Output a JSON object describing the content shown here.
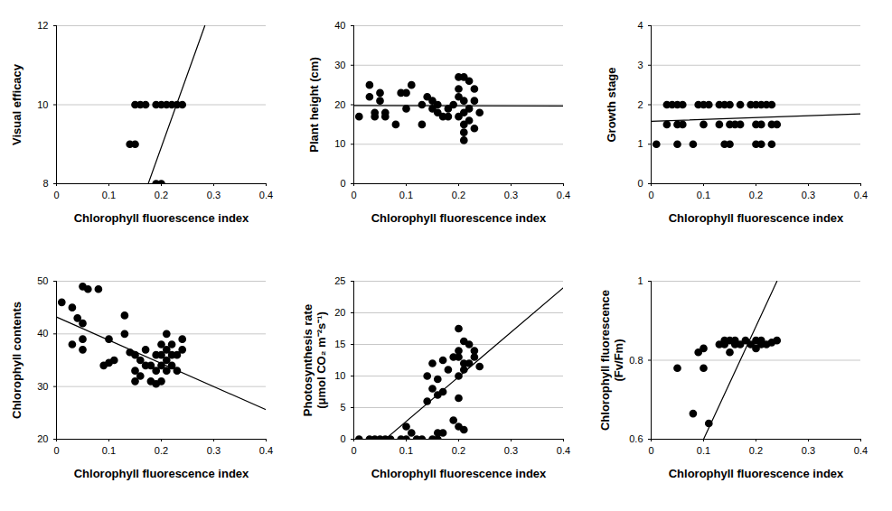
{
  "chart_data": [
    {
      "type": "scatter",
      "xlabel": "Chlorophyll fluorescence index",
      "ylabel": "Visual efficacy",
      "x": [
        0.14,
        0.15,
        0.15,
        0.16,
        0.17,
        0.19,
        0.2,
        0.21,
        0.22,
        0.23,
        0.24,
        0.19,
        0.2
      ],
      "y": [
        9,
        9,
        10,
        10,
        10,
        10,
        10,
        10,
        10,
        10,
        10,
        8,
        8
      ],
      "trend_line": {
        "x": [
          0.175,
          0.283
        ],
        "y": [
          8,
          12
        ]
      },
      "xlim": [
        0,
        0.4
      ],
      "xticks": [
        0,
        0.1,
        0.2,
        0.3,
        0.4
      ],
      "ylim": [
        8,
        12
      ],
      "yticks": [
        8,
        10,
        12
      ],
      "grid": true,
      "color": "#000000",
      "marker": "circle",
      "line_style": "solid"
    },
    {
      "type": "scatter",
      "xlabel": "Chlorophyll fluorescence index",
      "ylabel": "Plant height (cm)",
      "x": [
        0.01,
        0.03,
        0.03,
        0.04,
        0.04,
        0.05,
        0.05,
        0.06,
        0.06,
        0.08,
        0.09,
        0.1,
        0.1,
        0.11,
        0.13,
        0.13,
        0.14,
        0.15,
        0.15,
        0.16,
        0.16,
        0.17,
        0.18,
        0.18,
        0.19,
        0.2,
        0.2,
        0.21,
        0.2,
        0.21,
        0.21,
        0.2,
        0.21,
        0.22,
        0.21,
        0.22,
        0.23,
        0.23,
        0.23,
        0.24,
        0.22,
        0.21
      ],
      "y": [
        17,
        22,
        25,
        18,
        17,
        21,
        23,
        18,
        17,
        15,
        23,
        23,
        19,
        25,
        20,
        15,
        22,
        19,
        21,
        20,
        18,
        17,
        17,
        19,
        20,
        27,
        24,
        27,
        22,
        18,
        21,
        17,
        13,
        26,
        11,
        19,
        21,
        24,
        14,
        18,
        16,
        15
      ],
      "trend_line": {
        "x": [
          0,
          0.4
        ],
        "y": [
          19.8,
          19.7
        ]
      },
      "xlim": [
        0,
        0.4
      ],
      "xticks": [
        0,
        0.1,
        0.2,
        0.3,
        0.4
      ],
      "ylim": [
        0,
        40
      ],
      "yticks": [
        0,
        10,
        20,
        30,
        40
      ],
      "grid": true,
      "color": "#000000",
      "marker": "circle",
      "line_style": "solid"
    },
    {
      "type": "scatter",
      "xlabel": "Chlorophyll fluorescence index",
      "ylabel": "Growth stage",
      "x": [
        0.01,
        0.03,
        0.03,
        0.04,
        0.05,
        0.05,
        0.05,
        0.06,
        0.06,
        0.08,
        0.09,
        0.1,
        0.1,
        0.11,
        0.13,
        0.13,
        0.14,
        0.14,
        0.15,
        0.15,
        0.15,
        0.16,
        0.17,
        0.17,
        0.19,
        0.2,
        0.2,
        0.2,
        0.21,
        0.21,
        0.21,
        0.22,
        0.23,
        0.23,
        0.23,
        0.24
      ],
      "y": [
        1,
        1.5,
        2,
        2,
        1,
        1.5,
        2,
        2,
        1.5,
        1,
        2,
        2,
        1.5,
        2,
        2,
        1.5,
        2,
        1,
        2,
        1,
        1.5,
        1.5,
        2,
        1.5,
        2,
        2,
        1,
        1.5,
        2,
        1,
        1.5,
        2,
        2,
        1,
        1.5,
        1.5
      ],
      "trend_line": {
        "x": [
          0,
          0.4
        ],
        "y": [
          1.58,
          1.77
        ]
      },
      "xlim": [
        0,
        0.4
      ],
      "xticks": [
        0,
        0.1,
        0.2,
        0.3,
        0.4
      ],
      "ylim": [
        0,
        4
      ],
      "yticks": [
        0,
        1,
        2,
        3,
        4
      ],
      "grid": true,
      "color": "#000000",
      "marker": "circle",
      "line_style": "solid"
    },
    {
      "type": "scatter",
      "xlabel": "Chlorophyll fluorescence index",
      "ylabel": "Chlorophyll contents",
      "x": [
        0.01,
        0.03,
        0.03,
        0.04,
        0.05,
        0.05,
        0.05,
        0.05,
        0.06,
        0.08,
        0.09,
        0.1,
        0.1,
        0.11,
        0.13,
        0.13,
        0.14,
        0.15,
        0.15,
        0.15,
        0.16,
        0.16,
        0.17,
        0.17,
        0.18,
        0.18,
        0.19,
        0.19,
        0.19,
        0.2,
        0.2,
        0.2,
        0.2,
        0.21,
        0.21,
        0.21,
        0.21,
        0.22,
        0.22,
        0.22,
        0.23,
        0.23,
        0.24,
        0.24
      ],
      "y": [
        46,
        45,
        38,
        43,
        49,
        42,
        39,
        37,
        48.5,
        48.5,
        34,
        34.5,
        39,
        35,
        43.5,
        40,
        36.5,
        36,
        33,
        31,
        35,
        32,
        37,
        34,
        34,
        31,
        36,
        33,
        30.5,
        36,
        38,
        34,
        31,
        40,
        37,
        35,
        33,
        38,
        36,
        34,
        36,
        33,
        39,
        37
      ],
      "trend_line": {
        "x": [
          0,
          0.4
        ],
        "y": [
          43.2,
          25.6
        ]
      },
      "xlim": [
        0,
        0.4
      ],
      "xticks": [
        0,
        0.1,
        0.2,
        0.3,
        0.4
      ],
      "ylim": [
        20,
        50
      ],
      "yticks": [
        20,
        30,
        40,
        50
      ],
      "grid": true,
      "color": "#000000",
      "marker": "circle",
      "line_style": "solid"
    },
    {
      "type": "scatter",
      "xlabel": "Chlorophyll fluorescence index",
      "ylabel": "Photosynthesis rate\n(μmol CO₂ m⁻²s⁻¹)",
      "x": [
        0.01,
        0.03,
        0.04,
        0.05,
        0.06,
        0.07,
        0.09,
        0.1,
        0.12,
        0.13,
        0.15,
        0.16,
        0.1,
        0.11,
        0.14,
        0.14,
        0.15,
        0.15,
        0.16,
        0.16,
        0.17,
        0.17,
        0.16,
        0.17,
        0.18,
        0.19,
        0.19,
        0.2,
        0.2,
        0.2,
        0.2,
        0.2,
        0.21,
        0.21,
        0.21,
        0.21,
        0.22,
        0.22,
        0.23,
        0.23,
        0.24,
        0.2
      ],
      "y": [
        0,
        0,
        0,
        0,
        0,
        0,
        0,
        0,
        0,
        0,
        0,
        0,
        2,
        1,
        6,
        10,
        8,
        12,
        9.5,
        7,
        12.5,
        7.5,
        1,
        1,
        11,
        13,
        3,
        13,
        17.5,
        10,
        6.5,
        14,
        15.5,
        12,
        11,
        1.5,
        15,
        12,
        14,
        13,
        11.5,
        2
      ],
      "trend_line": {
        "x": [
          0.06,
          0.4
        ],
        "y": [
          0,
          24
        ]
      },
      "xlim": [
        0,
        0.4
      ],
      "xticks": [
        0,
        0.1,
        0.2,
        0.3,
        0.4
      ],
      "ylim": [
        0,
        25
      ],
      "yticks": [
        0,
        5,
        10,
        15,
        20,
        25
      ],
      "grid": true,
      "color": "#000000",
      "marker": "circle",
      "line_style": "solid"
    },
    {
      "type": "scatter",
      "xlabel": "Chlorophyll fluorescence index",
      "ylabel": "Chlorophyll fluorescence\n(Fv/Fm)",
      "x": [
        0.05,
        0.08,
        0.09,
        0.1,
        0.1,
        0.11,
        0.13,
        0.14,
        0.14,
        0.15,
        0.15,
        0.16,
        0.16,
        0.17,
        0.18,
        0.19,
        0.2,
        0.2,
        0.21,
        0.21,
        0.22,
        0.23,
        0.24
      ],
      "y": [
        0.78,
        0.665,
        0.82,
        0.78,
        0.83,
        0.64,
        0.84,
        0.85,
        0.84,
        0.85,
        0.82,
        0.85,
        0.84,
        0.84,
        0.85,
        0.84,
        0.85,
        0.83,
        0.84,
        0.85,
        0.84,
        0.845,
        0.85
      ],
      "trend_line": {
        "x": [
          0.1,
          0.24
        ],
        "y": [
          0.6,
          1
        ]
      },
      "xlim": [
        0,
        0.4
      ],
      "xticks": [
        0,
        0.1,
        0.2,
        0.3,
        0.4
      ],
      "ylim": [
        0.6,
        1
      ],
      "yticks": [
        0.6,
        0.8,
        1
      ],
      "grid": true,
      "color": "#000000",
      "marker": "circle",
      "line_style": "solid"
    }
  ]
}
